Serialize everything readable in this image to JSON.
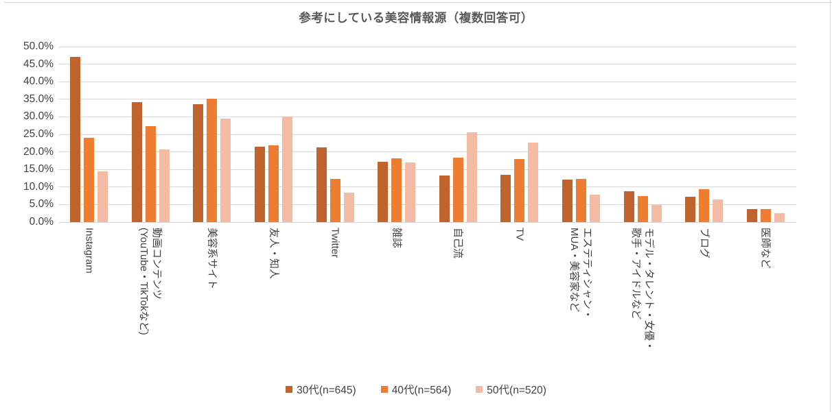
{
  "chart_data": {
    "type": "bar",
    "title": "参考にしている美容情報源（複数回答可）",
    "categories": [
      {
        "lines": [
          "Instagram"
        ]
      },
      {
        "lines": [
          "動画コンテンツ",
          "(YouTube・TikTokなど)"
        ]
      },
      {
        "lines": [
          "美容系サイト"
        ]
      },
      {
        "lines": [
          "友人・知人"
        ]
      },
      {
        "lines": [
          "Twitter"
        ]
      },
      {
        "lines": [
          "雑誌"
        ]
      },
      {
        "lines": [
          "自己流"
        ]
      },
      {
        "lines": [
          "TV"
        ]
      },
      {
        "lines": [
          "エステティシャン・",
          "MUA・美容家など"
        ]
      },
      {
        "lines": [
          "モデル・タレント・女優・",
          "歌手・アイドルなど"
        ]
      },
      {
        "lines": [
          "ブログ"
        ]
      },
      {
        "lines": [
          "医師など"
        ]
      }
    ],
    "series": [
      {
        "name": "30代(n=645)",
        "color": "#C1632C",
        "values": [
          47.1,
          34.2,
          33.5,
          21.5,
          21.2,
          17.2,
          13.2,
          13.4,
          12.2,
          8.8,
          7.2,
          3.7
        ]
      },
      {
        "name": "40代(n=564)",
        "color": "#ED7D31",
        "values": [
          24.1,
          27.3,
          35.2,
          21.9,
          12.3,
          18.2,
          18.4,
          17.9,
          12.3,
          7.4,
          9.4,
          3.8
        ]
      },
      {
        "name": "50代(n=520)",
        "color": "#F3BBA3",
        "values": [
          14.4,
          20.8,
          29.4,
          30.1,
          8.4,
          17.0,
          25.5,
          22.6,
          7.9,
          4.8,
          6.5,
          2.6
        ]
      }
    ],
    "y_axis": {
      "min": 0,
      "max": 50,
      "step": 5,
      "tick_labels": [
        "50.0%",
        "45.0%",
        "40.0%",
        "35.0%",
        "30.0%",
        "25.0%",
        "20.0%",
        "15.0%",
        "10.0%",
        "5.0%",
        "0.0%"
      ]
    },
    "grid": true,
    "legend_position": "bottom",
    "gridline_color": "#D9D9D9"
  }
}
